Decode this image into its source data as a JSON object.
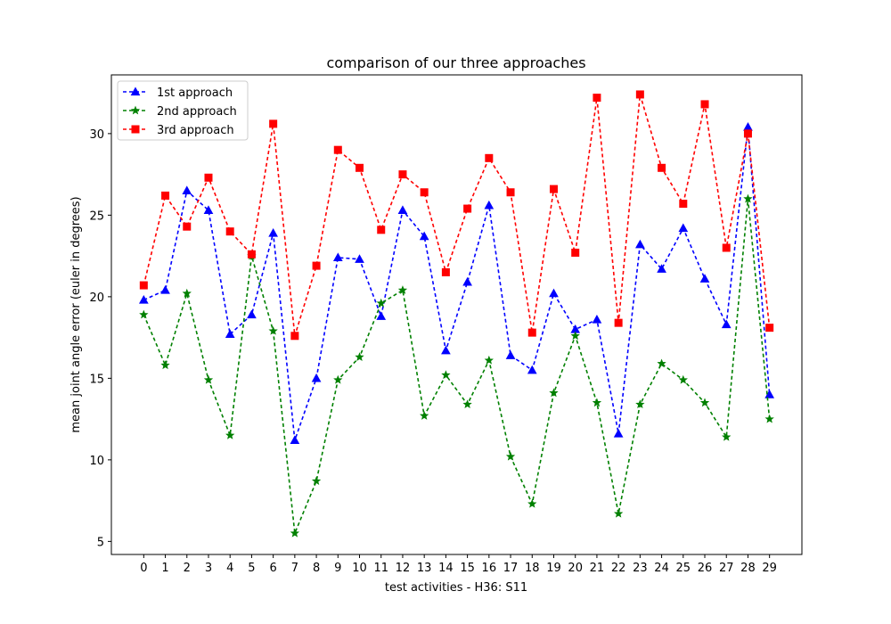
{
  "chart_data": {
    "type": "line",
    "title": "comparison of our three approaches",
    "xlabel": "test activities - H36: S11",
    "ylabel": "mean joint angle error (euler in degrees)",
    "x": [
      0,
      1,
      2,
      3,
      4,
      5,
      6,
      7,
      8,
      9,
      10,
      11,
      12,
      13,
      14,
      15,
      16,
      17,
      18,
      19,
      20,
      21,
      22,
      23,
      24,
      25,
      26,
      27,
      28,
      29
    ],
    "xlim": [
      -1.5,
      30.5
    ],
    "ylim": [
      4.2,
      33.6
    ],
    "yticks": [
      5,
      10,
      15,
      20,
      25,
      30
    ],
    "grid": false,
    "legend_position": "top-left",
    "series": [
      {
        "name": "1st approach",
        "color": "#0000ff",
        "marker": "triangle",
        "values": [
          19.8,
          20.4,
          26.5,
          25.3,
          17.7,
          18.9,
          23.9,
          11.2,
          15.0,
          22.4,
          22.3,
          18.8,
          25.3,
          23.7,
          16.7,
          20.9,
          25.6,
          16.4,
          15.5,
          20.2,
          18.0,
          18.6,
          11.6,
          23.2,
          21.7,
          24.2,
          21.1,
          18.3,
          30.4,
          14.0
        ]
      },
      {
        "name": "2nd approach",
        "color": "#008000",
        "marker": "star",
        "values": [
          18.9,
          15.8,
          20.2,
          14.9,
          11.5,
          22.5,
          17.9,
          5.5,
          8.7,
          14.9,
          16.3,
          19.6,
          20.4,
          12.7,
          15.2,
          13.4,
          16.1,
          10.2,
          7.3,
          14.1,
          17.6,
          13.5,
          6.7,
          13.4,
          15.9,
          14.9,
          13.5,
          11.4,
          26.0,
          12.5
        ]
      },
      {
        "name": "3rd approach",
        "color": "#ff0000",
        "marker": "square",
        "values": [
          20.7,
          26.2,
          24.3,
          27.3,
          24.0,
          22.6,
          30.6,
          17.6,
          21.9,
          29.0,
          27.9,
          24.1,
          27.5,
          26.4,
          21.5,
          25.4,
          28.5,
          26.4,
          17.8,
          26.6,
          22.7,
          32.2,
          18.4,
          32.4,
          27.9,
          25.7,
          31.8,
          23.0,
          30.0,
          18.1
        ]
      }
    ]
  }
}
